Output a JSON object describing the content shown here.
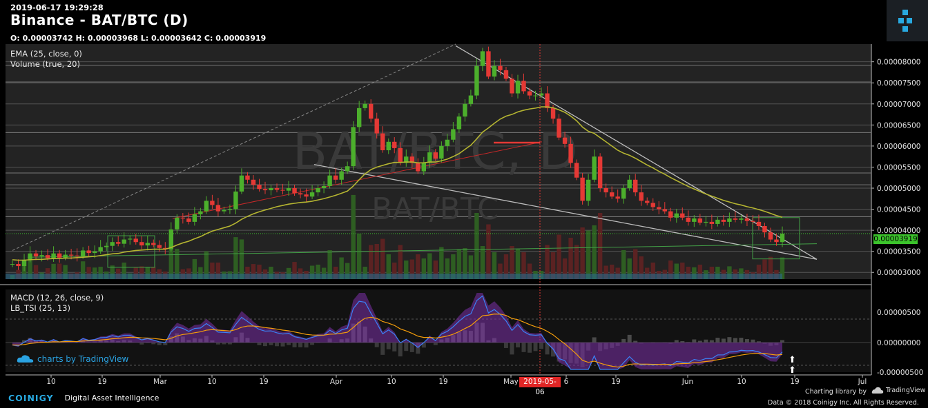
{
  "header": {
    "timestamp": "2019-06-17 19:29:28",
    "title": "Binance - BAT/BTC (D)",
    "ohlc": "O: 0.00003742 H: 0.00003968 L: 0.00003642 C: 0.00003919"
  },
  "watermark": {
    "big": "BAT/BTC, D",
    "small": "BAT/BTC"
  },
  "indicators": {
    "ema": "EMA (25, close, 0)",
    "volume": "Volume (true, 20)",
    "macd": "MACD (12, 26, close, 9)",
    "tsi": "LB_TSI (25, 13)"
  },
  "tradingview_badge": "charts by TradingView",
  "footer": {
    "brand": "COINIGY",
    "tagline": "Digital Asset Intelligence",
    "charting_library": "Charting library by",
    "tradingview": "TradingView",
    "copyright": "Data © 2018  Coinigy Inc. All Rights Reserved."
  },
  "colors": {
    "up": "#4caf2c",
    "down": "#e53935",
    "ema": "#b5b531",
    "macd": "#3b82f6",
    "signal": "#f59e0b",
    "tsi": "#7b2fa8"
  },
  "chart_data": {
    "type": "candlestick",
    "symbol": "BAT/BTC",
    "exchange": "Binance",
    "interval": "D",
    "x_ticks": [
      "10",
      "19",
      "Mar",
      "10",
      "19",
      "Apr",
      "10",
      "19",
      "May",
      "6",
      "19",
      "Jun",
      "10",
      "19",
      "Jul"
    ],
    "crosshair_date": "2019-05-06",
    "price_axis_ticks": [
      "0.00008000",
      "0.00007500",
      "0.00007000",
      "0.00006500",
      "0.00006000",
      "0.00005500",
      "0.00005000",
      "0.00004500",
      "0.00004000",
      "0.00003500",
      "0.00003000"
    ],
    "last_price_label": "0.00003919",
    "ylim": [
      2.84e-05,
      8.42e-05
    ],
    "ohlc_close_series": [
      3.2e-05,
      3.15e-05,
      3.3e-05,
      3.45e-05,
      3.38e-05,
      3.41e-05,
      3.34e-05,
      3.45e-05,
      3.35e-05,
      3.42e-05,
      3.4e-05,
      3.38e-05,
      3.52e-05,
      3.46e-05,
      3.5e-05,
      3.6e-05,
      3.63e-05,
      3.72e-05,
      3.68e-05,
      3.78e-05,
      3.8e-05,
      3.72e-05,
      3.64e-05,
      3.7e-05,
      3.65e-05,
      3.58e-05,
      3.55e-05,
      4.02e-05,
      4.3e-05,
      4.28e-05,
      4.2e-05,
      4.38e-05,
      4.45e-05,
      4.7e-05,
      4.6e-05,
      4.45e-05,
      4.48e-05,
      4.5e-05,
      4.92e-05,
      5.3e-05,
      5.2e-05,
      5.08e-05,
      4.98e-05,
      4.95e-05,
      5e-05,
      4.96e-05,
      4.94e-05,
      5e-05,
      4.88e-05,
      4.85e-05,
      4.8e-05,
      4.9e-05,
      5e-05,
      5.05e-05,
      5.3e-05,
      5.2e-05,
      5.4e-05,
      5.52e-05,
      6.45e-05,
      6.9e-05,
      7e-05,
      6.65e-05,
      6.3e-05,
      5.9e-05,
      6.1e-05,
      5.95e-05,
      5.6e-05,
      5.75e-05,
      5.6e-05,
      5.4e-05,
      5.6e-05,
      5.85e-05,
      5.7e-05,
      6e-05,
      6.15e-05,
      6.4e-05,
      6.7e-05,
      7e-05,
      7.2e-05,
      7.9e-05,
      8.25e-05,
      7.65e-05,
      7.9e-05,
      7.8e-05,
      7.6e-05,
      7.25e-05,
      7.55e-05,
      7.3e-05,
      7.2e-05,
      7.2e-05,
      7.25e-05,
      6.9e-05,
      6.65e-05,
      6.2e-05,
      6.05e-05,
      5.6e-05,
      5.25e-05,
      4.7e-05,
      5.2e-05,
      5.75e-05,
      5e-05,
      4.9e-05,
      4.8e-05,
      4.75e-05,
      5e-05,
      5.2e-05,
      4.9e-05,
      4.7e-05,
      4.65e-05,
      4.55e-05,
      4.5e-05,
      4.45e-05,
      4.3e-05,
      4.4e-05,
      4.3e-05,
      4.2e-05,
      4.28e-05,
      4.18e-05,
      4.2e-05,
      4.15e-05,
      4.25e-05,
      4.2e-05,
      4.28e-05,
      4.25e-05,
      4.28e-05,
      4.22e-05,
      4.2e-05,
      4.1e-05,
      3.95e-05,
      3.78e-05,
      3.72e-05,
      3.92e-05
    ],
    "ema_series": [
      3.3e-05,
      3.29e-05,
      3.29e-05,
      3.3e-05,
      3.31e-05,
      3.31e-05,
      3.32e-05,
      3.33e-05,
      3.33e-05,
      3.34e-05,
      3.34e-05,
      3.35e-05,
      3.36e-05,
      3.37e-05,
      3.38e-05,
      3.4e-05,
      3.42e-05,
      3.44e-05,
      3.45e-05,
      3.48e-05,
      3.5e-05,
      3.52e-05,
      3.53e-05,
      3.54e-05,
      3.55e-05,
      3.55e-05,
      3.55e-05,
      3.59e-05,
      3.65e-05,
      3.7e-05,
      3.74e-05,
      3.8e-05,
      3.85e-05,
      3.92e-05,
      3.98e-05,
      4.02e-05,
      4.06e-05,
      4.1e-05,
      4.17e-05,
      4.26e-05,
      4.33e-05,
      4.39e-05,
      4.44e-05,
      4.48e-05,
      4.52e-05,
      4.56e-05,
      4.59e-05,
      4.62e-05,
      4.64e-05,
      4.66e-05,
      4.67e-05,
      4.69e-05,
      4.72e-05,
      4.75e-05,
      4.79e-05,
      4.83e-05,
      4.88e-05,
      4.93e-05,
      5.05e-05,
      5.2e-05,
      5.34e-05,
      5.44e-05,
      5.5e-05,
      5.54e-05,
      5.58e-05,
      5.61e-05,
      5.61e-05,
      5.62e-05,
      5.62e-05,
      5.6e-05,
      5.6e-05,
      5.62e-05,
      5.62e-05,
      5.65e-05,
      5.69e-05,
      5.75e-05,
      5.82e-05,
      5.92e-05,
      6.02e-05,
      6.17e-05,
      6.33e-05,
      6.43e-05,
      6.54e-05,
      6.64e-05,
      6.71e-05,
      6.75e-05,
      6.81e-05,
      6.85e-05,
      6.88e-05,
      6.9e-05,
      6.93e-05,
      6.93e-05,
      6.91e-05,
      6.86e-05,
      6.8e-05,
      6.71e-05,
      6.6e-05,
      6.45e-05,
      6.35e-05,
      6.3e-05,
      6.2e-05,
      6.1e-05,
      6e-05,
      5.9e-05,
      5.83e-05,
      5.78e-05,
      5.71e-05,
      5.63e-05,
      5.55e-05,
      5.48e-05,
      5.4e-05,
      5.33e-05,
      5.25e-05,
      5.18e-05,
      5.11e-05,
      5.04e-05,
      4.98e-05,
      4.92e-05,
      4.86e-05,
      4.81e-05,
      4.76e-05,
      4.71e-05,
      4.67e-05,
      4.63e-05,
      4.6e-05,
      4.56e-05,
      4.53e-05,
      4.49e-05,
      4.45e-05,
      4.4e-05,
      4.35e-05,
      4.31e-05
    ]
  }
}
